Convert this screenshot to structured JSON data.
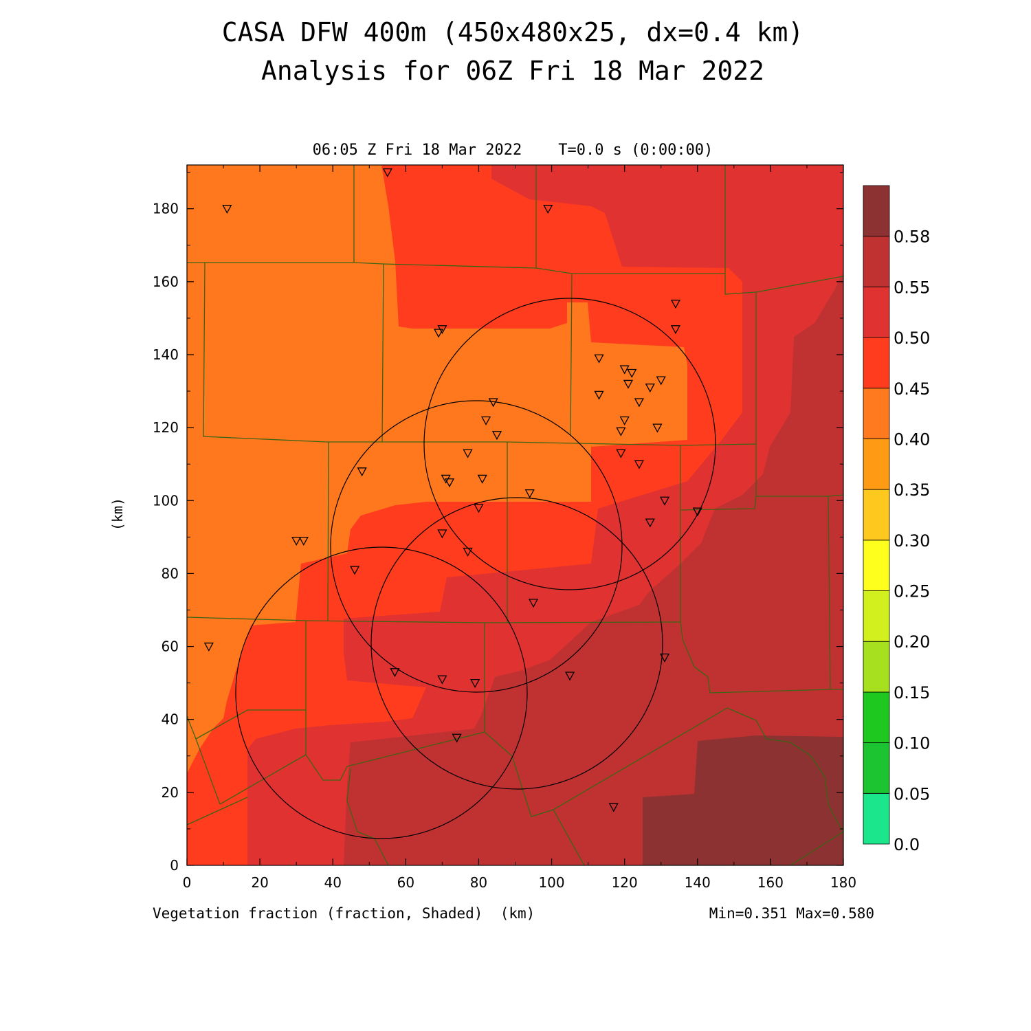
{
  "title_line1": "CASA DFW 400m (450x480x25, dx=0.4 km)",
  "title_line2": "Analysis for 06Z Fri 18 Mar 2022",
  "subtitle": "06:05 Z Fri 18 Mar 2022    T=0.0 s (0:00:00)",
  "footer_left": "Vegetation fraction (fraction, Shaded)  (km)",
  "footer_right": "Min=0.351 Max=0.580",
  "chart_data": {
    "type": "heatmap",
    "title": "CASA DFW 400m (450x480x25, dx=0.4 km)",
    "subtitle": "Analysis for 06Z Fri 18 Mar 2022",
    "xlabel": "(km)",
    "ylabel": "(km)",
    "xlim": [
      0,
      180
    ],
    "ylim": [
      0,
      192
    ],
    "x_ticks": [
      0,
      20,
      40,
      60,
      80,
      100,
      120,
      140,
      160,
      180
    ],
    "y_ticks": [
      0,
      20,
      40,
      60,
      80,
      100,
      120,
      140,
      160,
      180
    ],
    "colorbar": {
      "levels": [
        "0.0",
        "0.05",
        "0.10",
        "0.15",
        "0.20",
        "0.25",
        "0.30",
        "0.35",
        "0.40",
        "0.45",
        "0.50",
        "0.55",
        "0.58"
      ],
      "colors": [
        "#1ce68c",
        "#1cc432",
        "#1ec81e",
        "#a6e01e",
        "#d2f01e",
        "#ffff1e",
        "#ffc81e",
        "#ff9a14",
        "#ff7a1e",
        "#ff3c1e",
        "#e13232",
        "#c03232",
        "#8c3232"
      ]
    },
    "field_colors": {
      "0.35-0.40": "#ff781e",
      "0.40-0.45": "#ff3c1e",
      "0.45-0.50": "#e13232",
      "0.50-0.55": "#c03232",
      "0.55-0.58": "#8c3232"
    },
    "range_rings": [
      {
        "center": [
          52,
          45
        ],
        "radius": 42
      },
      {
        "center": [
          79,
          88
        ],
        "radius": 40
      },
      {
        "center": [
          90,
          61
        ],
        "radius": 40
      },
      {
        "center": [
          105,
          116
        ],
        "radius": 40
      }
    ],
    "stations": [
      [
        11,
        180
      ],
      [
        55,
        190
      ],
      [
        99,
        180
      ],
      [
        69,
        146
      ],
      [
        70,
        147
      ],
      [
        113,
        139
      ],
      [
        120,
        136
      ],
      [
        122,
        135
      ],
      [
        134,
        154
      ],
      [
        134,
        147
      ],
      [
        121,
        132
      ],
      [
        127,
        131
      ],
      [
        130,
        133
      ],
      [
        113,
        129
      ],
      [
        124,
        127
      ],
      [
        84,
        127
      ],
      [
        82,
        122
      ],
      [
        120,
        122
      ],
      [
        119,
        119
      ],
      [
        129,
        120
      ],
      [
        85,
        118
      ],
      [
        77,
        113
      ],
      [
        119,
        113
      ],
      [
        124,
        110
      ],
      [
        48,
        108
      ],
      [
        71,
        106
      ],
      [
        72,
        105
      ],
      [
        81,
        106
      ],
      [
        94,
        102
      ],
      [
        131,
        100
      ],
      [
        80,
        98
      ],
      [
        140,
        97
      ],
      [
        127,
        94
      ],
      [
        70,
        91
      ],
      [
        30,
        89
      ],
      [
        32,
        89
      ],
      [
        77,
        86
      ],
      [
        46,
        81
      ],
      [
        95,
        72
      ],
      [
        6,
        60
      ],
      [
        131,
        57
      ],
      [
        57,
        53
      ],
      [
        70,
        51
      ],
      [
        79,
        50
      ],
      [
        105,
        52
      ],
      [
        74,
        35
      ],
      [
        117,
        16
      ]
    ],
    "min": 0.351,
    "max": 0.58
  }
}
